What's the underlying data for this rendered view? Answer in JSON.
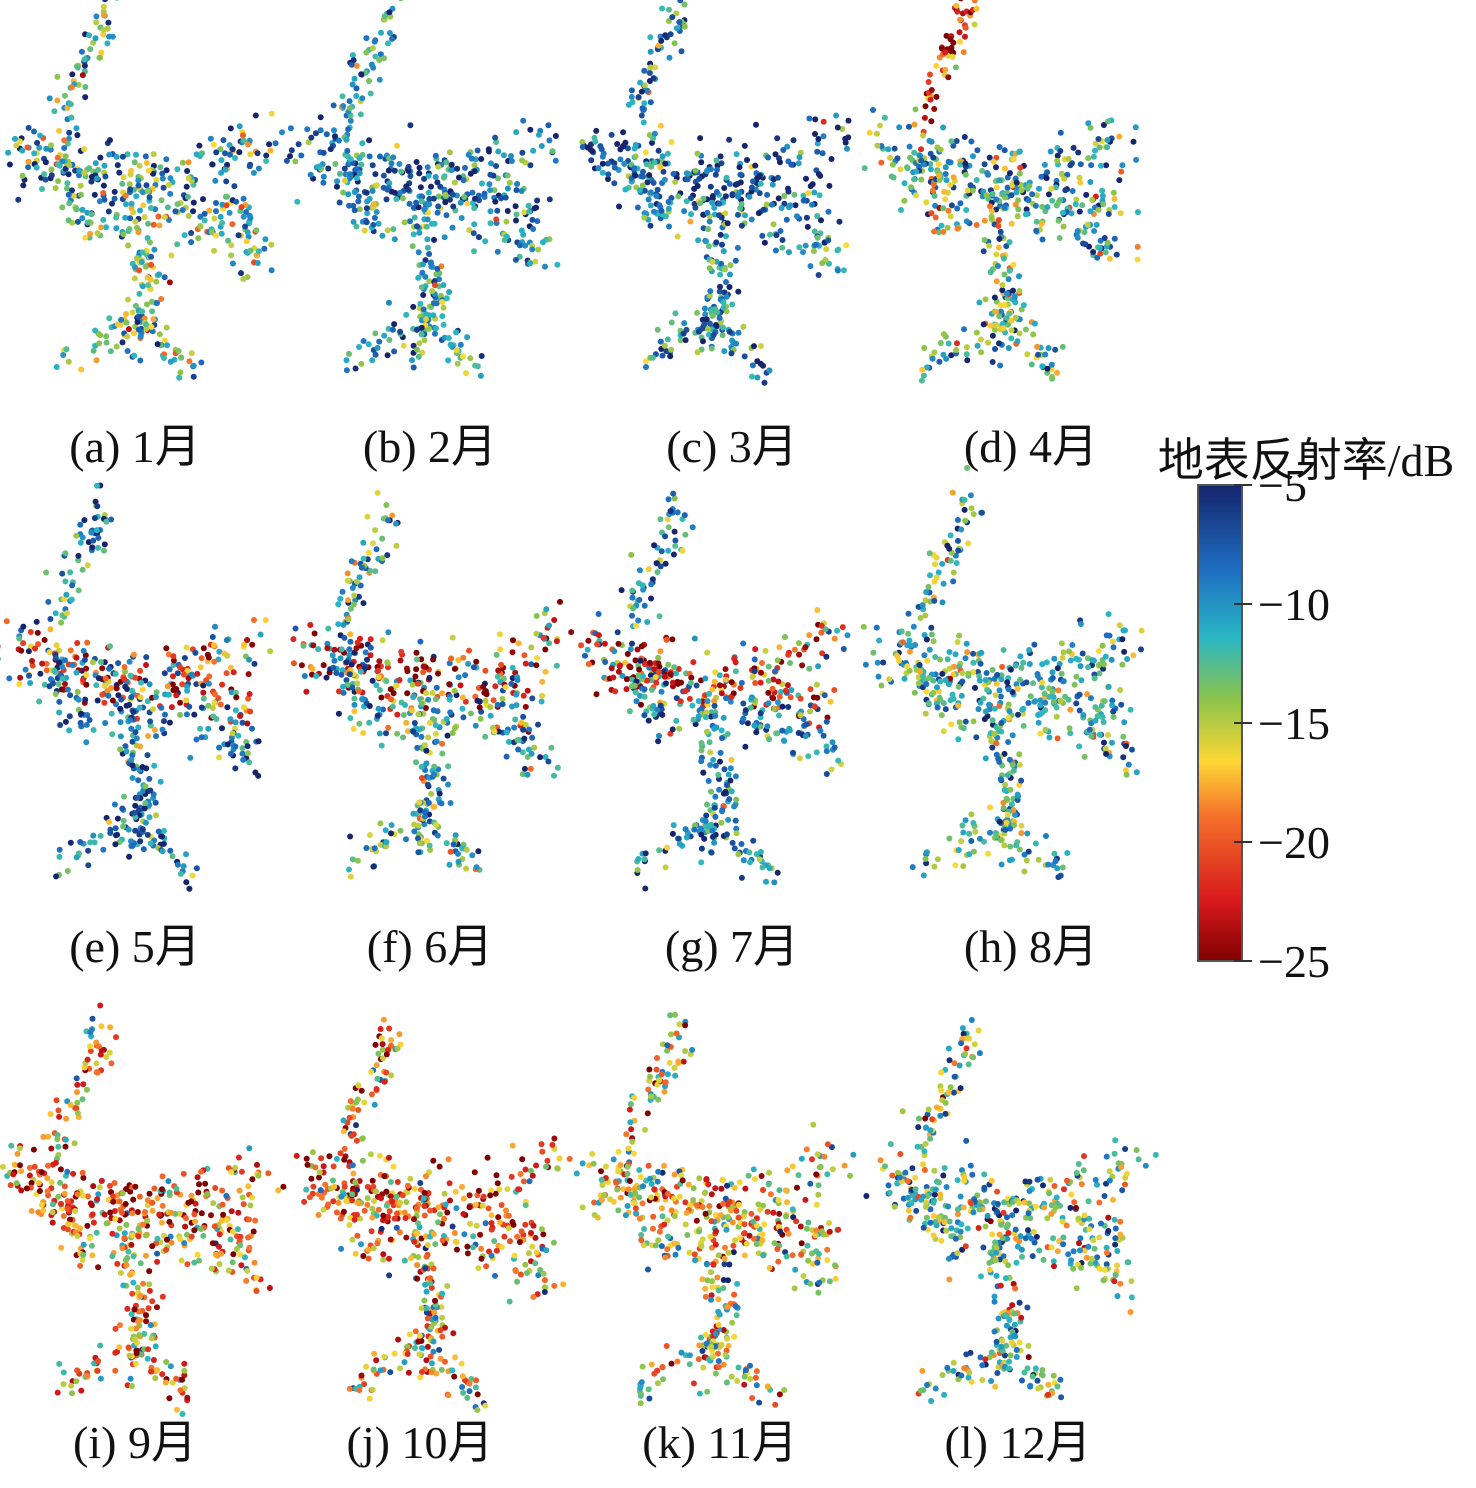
{
  "chart_data": {
    "type": "scatter",
    "description_units": "dB",
    "colorbar": {
      "title": "地表反射率/dB",
      "min": -25,
      "max": -5,
      "ticks": [
        -5,
        -10,
        -15,
        -20,
        -25
      ],
      "tick_labels": [
        "−5",
        "−10",
        "−15",
        "−20",
        "−25"
      ],
      "colormap": "jet",
      "placement": "right"
    },
    "panels": [
      {
        "id": "a",
        "label": "(a) 1月",
        "mean": -13.0,
        "spread": 4.0,
        "band_mean": -9
      },
      {
        "id": "b",
        "label": "(b) 2月",
        "mean": -11.0,
        "spread": 3.0,
        "band_mean": -7
      },
      {
        "id": "c",
        "label": "(c) 3月",
        "mean": -10.0,
        "spread": 3.5,
        "band_mean": -6
      },
      {
        "id": "d",
        "label": "(d) 4月",
        "mean": -12.0,
        "spread": 4.5,
        "band_mean": -10,
        "north_mean": -21
      },
      {
        "id": "e",
        "label": "(e) 5月",
        "mean": -9.0,
        "spread": 3.5,
        "band_mean": -21
      },
      {
        "id": "f",
        "label": "(f) 6月",
        "mean": -11.0,
        "spread": 4.0,
        "band_mean": -23
      },
      {
        "id": "g",
        "label": "(g) 7月",
        "mean": -10.0,
        "spread": 3.5,
        "band_mean": -22
      },
      {
        "id": "h",
        "label": "(h) 8月",
        "mean": -12.0,
        "spread": 3.5,
        "band_mean": -11
      },
      {
        "id": "i",
        "label": "(i) 9月",
        "mean": -17.5,
        "spread": 4.5,
        "band_mean": -22
      },
      {
        "id": "j",
        "label": "(j) 10月",
        "mean": -17.0,
        "spread": 5.0,
        "band_mean": -21
      },
      {
        "id": "k",
        "label": "(k) 11月",
        "mean": -15.0,
        "spread": 4.5,
        "band_mean": -18
      },
      {
        "id": "l",
        "label": "(l) 12月",
        "mean": -13.5,
        "spread": 4.5,
        "band_mean": -12
      }
    ]
  }
}
